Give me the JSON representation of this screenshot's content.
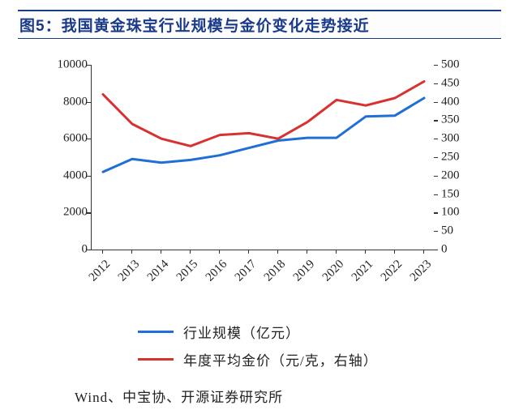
{
  "title": "图5：我国黄金珠宝行业规模与金价变化走势接近",
  "source": "Wind、中宝协、开源证券研究所",
  "chart": {
    "type": "line",
    "background_color": "#ffffff",
    "axis_color": "#333333",
    "x_categories": [
      "2012",
      "2013",
      "2014",
      "2015",
      "2016",
      "2017",
      "2018",
      "2019",
      "2020",
      "2021",
      "2022",
      "2023"
    ],
    "x_label_rotation_deg": -45,
    "left_axis": {
      "ylim": [
        0,
        10000
      ],
      "ticks": [
        0,
        2000,
        4000,
        6000,
        8000,
        10000
      ],
      "series": {
        "name": "行业规模（亿元）",
        "color": "#1f6fd4",
        "line_width": 3,
        "values": [
          4200,
          4900,
          4700,
          4850,
          5100,
          5500,
          5900,
          6050,
          6050,
          7200,
          7250,
          8200
        ]
      }
    },
    "right_axis": {
      "ylim": [
        0,
        500
      ],
      "ticks": [
        0,
        50,
        100,
        150,
        200,
        250,
        300,
        350,
        400,
        450,
        500
      ],
      "series": {
        "name": "年度平均金价（元/克，右轴）",
        "color": "#d93030",
        "line_width": 3,
        "values": [
          420,
          340,
          300,
          280,
          310,
          315,
          300,
          345,
          405,
          390,
          410,
          455
        ]
      }
    },
    "label_fontsize": 15,
    "title_fontsize": 19
  },
  "legend": {
    "items": [
      {
        "color": "#1f6fd4",
        "label": "行业规模（亿元）"
      },
      {
        "color": "#d93030",
        "label": "年度平均金价（元/克，右轴）"
      }
    ]
  }
}
